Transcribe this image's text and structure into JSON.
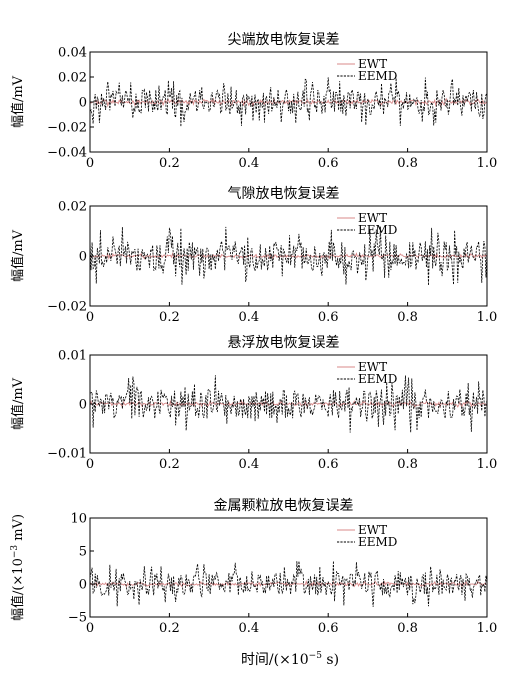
{
  "figure": {
    "xlabel_main": "时间/(×10",
    "xlabel_exp": "−5",
    "xlabel_unit": " s)"
  },
  "chart_data": [
    {
      "type": "line",
      "title": "尖端放电恢复误差",
      "ylabel": "幅值/mV",
      "ylim": [
        -0.04,
        0.04
      ],
      "yticks": [
        0.04,
        0.02,
        0,
        -0.02,
        -0.04
      ],
      "ytick_labels": [
        "0.04",
        "0.02",
        "0",
        "−0.02",
        "−0.04"
      ],
      "xlim": [
        0,
        1.0
      ],
      "xticks": [
        0,
        0.2,
        0.4,
        0.6,
        0.8,
        1.0
      ],
      "xtick_labels": [
        "0",
        "0.2",
        "0.4",
        "0.6",
        "0.8",
        "1.0"
      ],
      "legend_position": "top-right",
      "series": [
        {
          "name": "EWT",
          "color": "#d98a8a",
          "style": "solid",
          "amplitude": 0.003
        },
        {
          "name": "EEMD",
          "color": "#000000",
          "style": "dashed",
          "amplitude": 0.02
        }
      ]
    },
    {
      "type": "line",
      "title": "气隙放电恢复误差",
      "ylabel": "幅值/mV",
      "ylim": [
        -0.02,
        0.02
      ],
      "yticks": [
        0.02,
        0,
        -0.02
      ],
      "ytick_labels": [
        "0.02",
        "0",
        "−0.02"
      ],
      "xlim": [
        0,
        1.0
      ],
      "xticks": [
        0,
        0.2,
        0.4,
        0.6,
        0.8,
        1.0
      ],
      "xtick_labels": [
        "0",
        "0.2",
        "0.4",
        "0.6",
        "0.8",
        "1.0"
      ],
      "legend_position": "top-right",
      "series": [
        {
          "name": "EWT",
          "color": "#d98a8a",
          "style": "solid",
          "amplitude": 0.001
        },
        {
          "name": "EEMD",
          "color": "#000000",
          "style": "dashed",
          "amplitude": 0.012
        }
      ]
    },
    {
      "type": "line",
      "title": "悬浮放电恢复误差",
      "ylabel": "幅值/mV",
      "ylim": [
        -0.01,
        0.01
      ],
      "yticks": [
        0.01,
        0,
        -0.01
      ],
      "ytick_labels": [
        "0.01",
        "0",
        "−0.01"
      ],
      "xlim": [
        0,
        1.0
      ],
      "xticks": [
        0,
        0.2,
        0.4,
        0.6,
        0.8,
        1.0
      ],
      "xtick_labels": [
        "0",
        "0.2",
        "0.4",
        "0.6",
        "0.8",
        "1.0"
      ],
      "legend_position": "top-right",
      "series": [
        {
          "name": "EWT",
          "color": "#d98a8a",
          "style": "solid",
          "amplitude": 0.0006
        },
        {
          "name": "EEMD",
          "color": "#000000",
          "style": "dashed",
          "amplitude": 0.006
        }
      ]
    },
    {
      "type": "line",
      "title": "金属颗粒放电恢复误差",
      "ylabel": "幅值/(×10",
      "ylabel_exp": "−3",
      "ylabel_unit": " mV)",
      "ylim": [
        -5,
        10
      ],
      "yticks": [
        10,
        5,
        0,
        -5
      ],
      "ytick_labels": [
        "10",
        "5",
        "0",
        "−5"
      ],
      "xlim": [
        0,
        1.0
      ],
      "xticks": [
        0,
        0.2,
        0.4,
        0.6,
        0.8,
        1.0
      ],
      "xtick_labels": [
        "0",
        "0.2",
        "0.4",
        "0.6",
        "0.8",
        "1.0"
      ],
      "legend_position": "top-right",
      "series": [
        {
          "name": "EWT",
          "color": "#d98a8a",
          "style": "solid",
          "amplitude": 0.4
        },
        {
          "name": "EEMD",
          "color": "#000000",
          "style": "dashed",
          "amplitude": 3.5
        }
      ]
    }
  ]
}
